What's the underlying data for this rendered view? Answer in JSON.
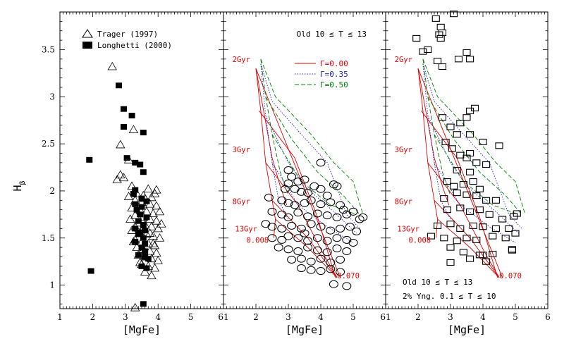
{
  "chart_data": {
    "type": "scatter",
    "ylabel_main": "H",
    "ylabel_sub": "β",
    "xlabel": "[MgFe]",
    "xlim": [
      1,
      6
    ],
    "ylim": [
      0.75,
      3.9
    ],
    "xticks": [
      "1",
      "2",
      "3",
      "4",
      "5",
      "6"
    ],
    "xticks_joined": [
      "6",
      "1"
    ],
    "yticks": [
      {
        "v": 1,
        "label": "1"
      },
      {
        "v": 1.5,
        "label": "1.5"
      },
      {
        "v": 2,
        "label": "2"
      },
      {
        "v": 2.5,
        "label": "2.5"
      },
      {
        "v": 3,
        "label": "3"
      },
      {
        "v": 3.5,
        "label": "3.5"
      }
    ],
    "panel1": {
      "legend": [
        {
          "name": "Trager (1997)",
          "marker": "triangle"
        },
        {
          "name": "Longhetti (2000)",
          "marker": "filled-square"
        }
      ],
      "series": [
        {
          "name": "Trager (1997)",
          "marker": "triangle",
          "points": [
            [
              2.6,
              3.32
            ],
            [
              3.25,
              2.65
            ],
            [
              2.85,
              2.49
            ],
            [
              2.85,
              2.17
            ],
            [
              2.95,
              2.14
            ],
            [
              2.75,
              2.12
            ],
            [
              3.1,
              2.33
            ],
            [
              3.2,
              2.05
            ],
            [
              3.7,
              2.02
            ],
            [
              3.95,
              2.01
            ],
            [
              3.35,
              1.97
            ],
            [
              3.55,
              1.95
            ],
            [
              3.8,
              1.93
            ],
            [
              3.3,
              1.9
            ],
            [
              3.5,
              1.88
            ],
            [
              3.75,
              1.86
            ],
            [
              3.95,
              1.84
            ],
            [
              3.2,
              1.82
            ],
            [
              3.45,
              1.8
            ],
            [
              3.65,
              1.78
            ],
            [
              3.85,
              1.76
            ],
            [
              3.3,
              1.74
            ],
            [
              3.55,
              1.72
            ],
            [
              3.75,
              1.7
            ],
            [
              3.95,
              1.68
            ],
            [
              3.4,
              1.66
            ],
            [
              3.6,
              1.64
            ],
            [
              3.8,
              1.62
            ],
            [
              4.0,
              1.6
            ],
            [
              3.2,
              1.58
            ],
            [
              3.45,
              1.56
            ],
            [
              3.65,
              1.54
            ],
            [
              3.85,
              1.52
            ],
            [
              4.05,
              1.5
            ],
            [
              3.3,
              1.48
            ],
            [
              3.5,
              1.46
            ],
            [
              3.7,
              1.44
            ],
            [
              3.9,
              1.42
            ],
            [
              3.35,
              1.4
            ],
            [
              3.55,
              1.38
            ],
            [
              3.75,
              1.36
            ],
            [
              3.95,
              1.34
            ],
            [
              3.4,
              1.32
            ],
            [
              3.6,
              1.3
            ],
            [
              3.8,
              1.28
            ],
            [
              4.0,
              1.26
            ],
            [
              3.5,
              1.22
            ],
            [
              3.7,
              1.2
            ],
            [
              3.9,
              1.18
            ],
            [
              3.6,
              1.14
            ],
            [
              3.8,
              1.1
            ],
            [
              3.3,
              1.62
            ],
            [
              3.9,
              1.97
            ],
            [
              4.05,
              1.78
            ],
            [
              3.25,
              1.46
            ],
            [
              3.15,
              1.7
            ],
            [
              3.6,
              1.92
            ],
            [
              3.85,
              1.44
            ],
            [
              3.45,
              1.24
            ],
            [
              3.75,
              1.55
            ],
            [
              4.1,
              1.65
            ],
            [
              3.1,
              1.94
            ],
            [
              3.3,
              0.76
            ]
          ]
        },
        {
          "name": "Longhetti (2000)",
          "marker": "filled-square",
          "points": [
            [
              2.8,
              3.12
            ],
            [
              2.95,
              2.87
            ],
            [
              3.2,
              2.8
            ],
            [
              2.95,
              2.68
            ],
            [
              3.55,
              2.62
            ],
            [
              3.05,
              2.35
            ],
            [
              3.3,
              2.3
            ],
            [
              3.45,
              2.28
            ],
            [
              3.55,
              2.2
            ],
            [
              1.9,
              2.33
            ],
            [
              3.3,
              2.01
            ],
            [
              3.25,
              1.97
            ],
            [
              3.5,
              1.92
            ],
            [
              3.65,
              1.89
            ],
            [
              3.3,
              1.86
            ],
            [
              3.5,
              1.83
            ],
            [
              3.45,
              1.75
            ],
            [
              3.65,
              1.72
            ],
            [
              3.4,
              1.68
            ],
            [
              3.55,
              1.64
            ],
            [
              3.3,
              1.6
            ],
            [
              3.6,
              1.58
            ],
            [
              3.4,
              1.54
            ],
            [
              3.55,
              1.5
            ],
            [
              3.3,
              1.46
            ],
            [
              3.6,
              1.44
            ],
            [
              3.5,
              1.4
            ],
            [
              3.4,
              1.32
            ],
            [
              3.6,
              1.3
            ],
            [
              3.7,
              1.28
            ],
            [
              3.5,
              1.2
            ],
            [
              3.65,
              1.18
            ],
            [
              1.95,
              1.15
            ],
            [
              3.55,
              0.8
            ],
            [
              3.45,
              1.56
            ],
            [
              3.6,
              1.36
            ],
            [
              3.35,
              1.8
            ]
          ]
        }
      ]
    },
    "panel2": {
      "header": "Old 10 ≤ T ≤ 13",
      "legend": [
        {
          "name": "Γ=0.00",
          "color": "#e00000",
          "dash": "solid"
        },
        {
          "name": "Γ=0.35",
          "color": "#2020c8",
          "dash": "dotted"
        },
        {
          "name": "Γ=0.50",
          "color": "#008000",
          "dash": "dashed"
        }
      ],
      "age_labels": [
        {
          "text": "2Gyr",
          "at": [
            1.55,
            3.4
          ]
        },
        {
          "text": "3Gyr",
          "at": [
            1.55,
            2.44
          ]
        },
        {
          "text": "8Gyr",
          "at": [
            1.55,
            1.89
          ]
        },
        {
          "text": "13Gyr",
          "at": [
            1.7,
            1.6
          ]
        },
        {
          "text": "0.008",
          "at": [
            2.05,
            1.48
          ]
        },
        {
          "text": "0.070",
          "at": [
            4.85,
            1.1
          ]
        }
      ],
      "points": [
        [
          3.0,
          2.22
        ],
        [
          3.1,
          2.15
        ],
        [
          3.0,
          2.08
        ],
        [
          3.3,
          2.1
        ],
        [
          3.5,
          2.12
        ],
        [
          3.2,
          2.02
        ],
        [
          3.4,
          1.99
        ],
        [
          3.6,
          1.98
        ],
        [
          3.8,
          2.05
        ],
        [
          4.0,
          2.02
        ],
        [
          4.4,
          2.07
        ],
        [
          4.5,
          2.05
        ],
        [
          4.0,
          2.3
        ],
        [
          2.8,
          1.9
        ],
        [
          3.0,
          1.87
        ],
        [
          3.2,
          1.85
        ],
        [
          3.5,
          1.87
        ],
        [
          3.7,
          1.9
        ],
        [
          4.0,
          1.86
        ],
        [
          4.3,
          1.88
        ],
        [
          4.6,
          1.85
        ],
        [
          2.5,
          1.78
        ],
        [
          2.8,
          1.75
        ],
        [
          3.0,
          1.72
        ],
        [
          3.3,
          1.77
        ],
        [
          3.6,
          1.73
        ],
        [
          3.9,
          1.76
        ],
        [
          4.2,
          1.74
        ],
        [
          4.5,
          1.72
        ],
        [
          4.8,
          1.75
        ],
        [
          5.0,
          1.78
        ],
        [
          5.2,
          1.7
        ],
        [
          2.3,
          1.65
        ],
        [
          2.5,
          1.62
        ],
        [
          2.8,
          1.6
        ],
        [
          3.1,
          1.63
        ],
        [
          3.4,
          1.6
        ],
        [
          3.7,
          1.65
        ],
        [
          4.0,
          1.62
        ],
        [
          4.3,
          1.58
        ],
        [
          4.6,
          1.6
        ],
        [
          4.9,
          1.62
        ],
        [
          5.1,
          1.57
        ],
        [
          2.5,
          1.5
        ],
        [
          2.8,
          1.48
        ],
        [
          3.0,
          1.52
        ],
        [
          3.3,
          1.5
        ],
        [
          3.6,
          1.47
        ],
        [
          3.9,
          1.5
        ],
        [
          4.2,
          1.47
        ],
        [
          4.5,
          1.5
        ],
        [
          4.8,
          1.48
        ],
        [
          5.0,
          1.45
        ],
        [
          2.7,
          1.4
        ],
        [
          3.0,
          1.38
        ],
        [
          3.3,
          1.36
        ],
        [
          3.6,
          1.4
        ],
        [
          3.9,
          1.37
        ],
        [
          4.2,
          1.35
        ],
        [
          4.5,
          1.39
        ],
        [
          4.8,
          1.36
        ],
        [
          3.1,
          1.27
        ],
        [
          3.4,
          1.28
        ],
        [
          3.7,
          1.25
        ],
        [
          4.0,
          1.28
        ],
        [
          4.3,
          1.24
        ],
        [
          4.6,
          1.27
        ],
        [
          3.4,
          1.18
        ],
        [
          3.7,
          1.16
        ],
        [
          4.0,
          1.15
        ],
        [
          4.3,
          1.17
        ],
        [
          4.6,
          1.14
        ],
        [
          4.4,
          1.01
        ],
        [
          4.8,
          0.99
        ],
        [
          2.4,
          1.93
        ],
        [
          2.9,
          2.02
        ],
        [
          4.2,
          1.95
        ],
        [
          4.7,
          1.8
        ],
        [
          5.3,
          1.72
        ],
        [
          3.5,
          1.55
        ]
      ]
    },
    "panel3": {
      "footer_line1": "Old 10 ≤ T ≤ 13",
      "footer_line2": "2% Yng. 0.1 ≤ T ≤ 10",
      "age_labels": [
        {
          "text": "2Gyr",
          "at": [
            1.55,
            3.4
          ]
        },
        {
          "text": "3Gyr",
          "at": [
            1.55,
            2.44
          ]
        },
        {
          "text": "8Gyr",
          "at": [
            1.55,
            1.89
          ]
        },
        {
          "text": "13Gyr",
          "at": [
            1.7,
            1.6
          ]
        },
        {
          "text": "0.008",
          "at": [
            2.05,
            1.48
          ]
        },
        {
          "text": "0.070",
          "at": [
            4.85,
            1.1
          ]
        }
      ],
      "points": [
        [
          2.55,
          3.83
        ],
        [
          2.7,
          3.74
        ],
        [
          2.75,
          3.68
        ],
        [
          2.65,
          3.66
        ],
        [
          2.7,
          3.62
        ],
        [
          3.1,
          3.88
        ],
        [
          1.95,
          3.62
        ],
        [
          2.15,
          3.48
        ],
        [
          2.6,
          3.38
        ],
        [
          2.75,
          3.32
        ],
        [
          2.3,
          3.5
        ],
        [
          3.25,
          3.4
        ],
        [
          3.6,
          3.4
        ],
        [
          3.5,
          3.47
        ],
        [
          3.6,
          2.85
        ],
        [
          3.75,
          2.88
        ],
        [
          3.5,
          2.78
        ],
        [
          2.75,
          2.78
        ],
        [
          3.3,
          2.72
        ],
        [
          3.0,
          2.68
        ],
        [
          2.85,
          2.52
        ],
        [
          3.2,
          2.6
        ],
        [
          3.6,
          2.6
        ],
        [
          4.0,
          2.52
        ],
        [
          4.5,
          2.48
        ],
        [
          3.05,
          2.45
        ],
        [
          3.5,
          2.35
        ],
        [
          3.8,
          2.3
        ],
        [
          4.1,
          2.28
        ],
        [
          3.2,
          2.22
        ],
        [
          3.6,
          2.2
        ],
        [
          2.9,
          2.1
        ],
        [
          3.1,
          2.05
        ],
        [
          3.4,
          2.07
        ],
        [
          3.7,
          2.1
        ],
        [
          3.9,
          2.02
        ],
        [
          2.8,
          1.92
        ],
        [
          3.2,
          1.98
        ],
        [
          3.5,
          1.96
        ],
        [
          3.8,
          1.95
        ],
        [
          4.1,
          1.9
        ],
        [
          2.9,
          1.8
        ],
        [
          3.3,
          1.82
        ],
        [
          3.6,
          1.78
        ],
        [
          3.9,
          1.8
        ],
        [
          4.2,
          1.75
        ],
        [
          4.6,
          1.7
        ],
        [
          4.95,
          1.73
        ],
        [
          5.05,
          1.76
        ],
        [
          2.6,
          1.63
        ],
        [
          3.0,
          1.65
        ],
        [
          3.3,
          1.6
        ],
        [
          3.7,
          1.63
        ],
        [
          4.0,
          1.62
        ],
        [
          4.4,
          1.6
        ],
        [
          4.8,
          1.6
        ],
        [
          5.0,
          1.55
        ],
        [
          2.4,
          1.52
        ],
        [
          2.8,
          1.5
        ],
        [
          3.2,
          1.47
        ],
        [
          3.5,
          1.5
        ],
        [
          3.8,
          1.48
        ],
        [
          4.3,
          1.52
        ],
        [
          4.7,
          1.5
        ],
        [
          3.0,
          1.4
        ],
        [
          3.4,
          1.35
        ],
        [
          3.9,
          1.32
        ],
        [
          4.3,
          1.33
        ],
        [
          4.9,
          1.38
        ],
        [
          3.0,
          1.24
        ],
        [
          4.1,
          1.25
        ],
        [
          4.0,
          1.32
        ],
        [
          4.9,
          1.37
        ],
        [
          3.6,
          1.28
        ],
        [
          3.3,
          2.38
        ],
        [
          3.6,
          2.4
        ],
        [
          4.4,
          1.9
        ]
      ]
    }
  }
}
